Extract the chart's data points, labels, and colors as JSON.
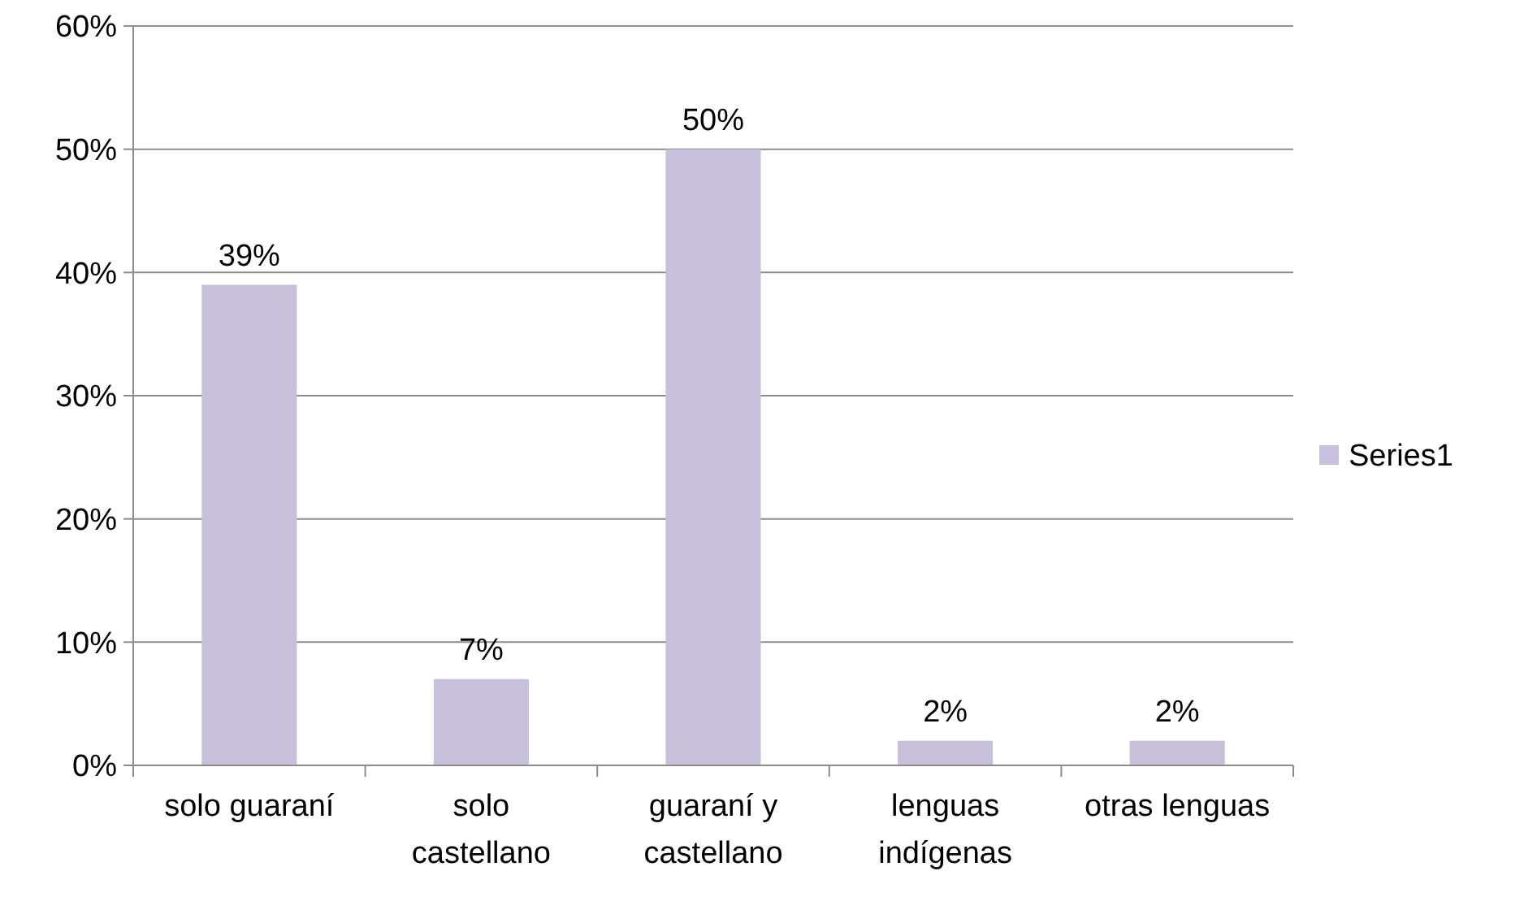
{
  "chart_data": {
    "type": "bar",
    "categories": [
      "solo guaraní",
      "solo castellano",
      "guaraní y castellano",
      "lenguas indígenas",
      "otras lenguas"
    ],
    "series": [
      {
        "name": "Series1",
        "color": "#c8bfdb",
        "values": [
          39,
          7,
          50,
          2,
          2
        ],
        "value_labels": [
          "39%",
          "7%",
          "50%",
          "2%",
          "2%"
        ]
      }
    ],
    "ylim": [
      0,
      60
    ],
    "yticks": [
      {
        "value": 0,
        "label": "0%"
      },
      {
        "value": 10,
        "label": "10%"
      },
      {
        "value": 20,
        "label": "20%"
      },
      {
        "value": 30,
        "label": "30%"
      },
      {
        "value": 40,
        "label": "40%"
      },
      {
        "value": 50,
        "label": "50%"
      },
      {
        "value": 60,
        "label": "60%"
      }
    ],
    "grid": "y",
    "legend": "right"
  }
}
